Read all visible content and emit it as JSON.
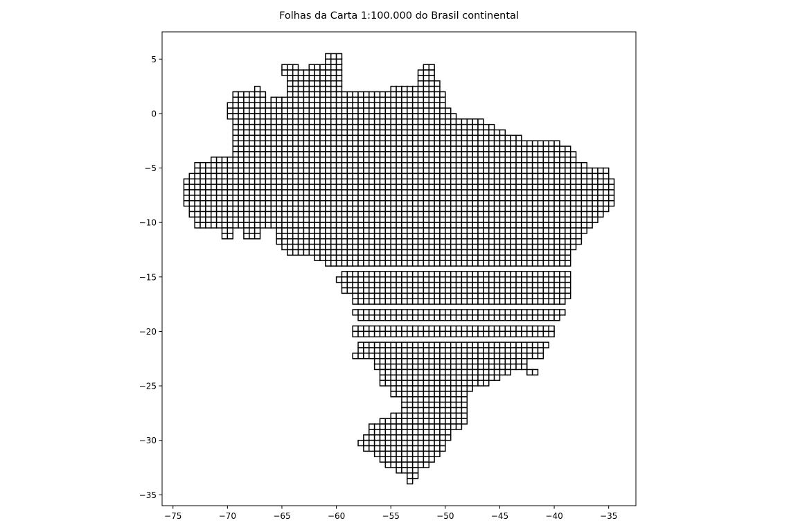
{
  "chart_data": {
    "type": "map",
    "title": "Folhas da Carta 1:100.000 do Brasil continental",
    "xlabel": "",
    "ylabel": "",
    "xlim": [
      -76.0,
      -32.5
    ],
    "ylim": [
      -36.0,
      7.5
    ],
    "xticks": [
      -75,
      -70,
      -65,
      -60,
      -55,
      -50,
      -45,
      -40,
      -35
    ],
    "yticks": [
      5,
      0,
      -5,
      -10,
      -15,
      -20,
      -25,
      -30,
      -35
    ],
    "xtick_labels": [
      "−75",
      "−70",
      "−65",
      "−60",
      "−55",
      "−50",
      "−45",
      "−40",
      "−35"
    ],
    "ytick_labels": [
      "5",
      "0",
      "−5",
      "−10",
      "−15",
      "−20",
      "−25",
      "−30",
      "−35"
    ],
    "grid": false,
    "sheet_size_deg": [
      0.5,
      0.5
    ],
    "sheet_edge_color": "#000000",
    "sheet_fill_color": "#ffffff",
    "sheet_rows": [
      {
        "lat_top": 5.5,
        "ranges": [
          [
            -61.0,
            -59.5
          ]
        ]
      },
      {
        "lat_top": 5.0,
        "ranges": [
          [
            -61.0,
            -59.5
          ]
        ]
      },
      {
        "lat_top": 4.5,
        "ranges": [
          [
            -65.0,
            -63.5
          ],
          [
            -62.5,
            -59.5
          ],
          [
            -52.0,
            -51.0
          ]
        ]
      },
      {
        "lat_top": 4.0,
        "ranges": [
          [
            -65.0,
            -59.5
          ],
          [
            -52.5,
            -51.0
          ]
        ]
      },
      {
        "lat_top": 3.5,
        "ranges": [
          [
            -64.5,
            -59.5
          ],
          [
            -52.5,
            -51.0
          ]
        ]
      },
      {
        "lat_top": 3.0,
        "ranges": [
          [
            -64.5,
            -59.5
          ],
          [
            -52.5,
            -50.5
          ]
        ]
      },
      {
        "lat_top": 2.5,
        "ranges": [
          [
            -67.5,
            -67.0
          ],
          [
            -64.5,
            -59.5
          ],
          [
            -55.0,
            -50.5
          ]
        ]
      },
      {
        "lat_top": 2.0,
        "ranges": [
          [
            -69.5,
            -66.5
          ],
          [
            -64.5,
            -50.0
          ]
        ]
      },
      {
        "lat_top": 1.5,
        "ranges": [
          [
            -69.5,
            -66.5
          ],
          [
            -66.0,
            -50.0
          ]
        ]
      },
      {
        "lat_top": 1.0,
        "ranges": [
          [
            -70.0,
            -50.0
          ]
        ]
      },
      {
        "lat_top": 0.5,
        "ranges": [
          [
            -70.0,
            -49.5
          ]
        ]
      },
      {
        "lat_top": 0.0,
        "ranges": [
          [
            -70.0,
            -49.0
          ]
        ]
      },
      {
        "lat_top": -0.5,
        "ranges": [
          [
            -69.5,
            -46.5
          ]
        ]
      },
      {
        "lat_top": -1.0,
        "ranges": [
          [
            -69.5,
            -45.5
          ]
        ]
      },
      {
        "lat_top": -1.5,
        "ranges": [
          [
            -69.5,
            -44.5
          ]
        ]
      },
      {
        "lat_top": -2.0,
        "ranges": [
          [
            -69.5,
            -43.0
          ]
        ]
      },
      {
        "lat_top": -2.5,
        "ranges": [
          [
            -69.5,
            -39.5
          ]
        ]
      },
      {
        "lat_top": -3.0,
        "ranges": [
          [
            -69.5,
            -38.5
          ]
        ]
      },
      {
        "lat_top": -3.5,
        "ranges": [
          [
            -69.5,
            -38.0
          ]
        ]
      },
      {
        "lat_top": -4.0,
        "ranges": [
          [
            -71.5,
            -38.0
          ]
        ]
      },
      {
        "lat_top": -4.5,
        "ranges": [
          [
            -73.0,
            -37.0
          ]
        ]
      },
      {
        "lat_top": -5.0,
        "ranges": [
          [
            -73.0,
            -35.0
          ]
        ]
      },
      {
        "lat_top": -5.5,
        "ranges": [
          [
            -73.5,
            -35.0
          ]
        ]
      },
      {
        "lat_top": -6.0,
        "ranges": [
          [
            -74.0,
            -34.5
          ]
        ]
      },
      {
        "lat_top": -6.5,
        "ranges": [
          [
            -74.0,
            -34.5
          ]
        ]
      },
      {
        "lat_top": -7.0,
        "ranges": [
          [
            -74.0,
            -34.5
          ]
        ]
      },
      {
        "lat_top": -7.5,
        "ranges": [
          [
            -74.0,
            -34.5
          ]
        ]
      },
      {
        "lat_top": -8.0,
        "ranges": [
          [
            -74.0,
            -34.5
          ]
        ]
      },
      {
        "lat_top": -8.5,
        "ranges": [
          [
            -73.5,
            -35.0
          ]
        ]
      },
      {
        "lat_top": -9.0,
        "ranges": [
          [
            -73.5,
            -35.5
          ]
        ]
      },
      {
        "lat_top": -9.5,
        "ranges": [
          [
            -73.0,
            -36.0
          ]
        ]
      },
      {
        "lat_top": -10.0,
        "ranges": [
          [
            -73.0,
            -36.5
          ]
        ]
      },
      {
        "lat_top": -10.5,
        "ranges": [
          [
            -70.5,
            -69.5
          ],
          [
            -68.5,
            -67.0
          ],
          [
            -65.5,
            -37.0
          ]
        ]
      },
      {
        "lat_top": -11.0,
        "ranges": [
          [
            -70.5,
            -69.5
          ],
          [
            -68.5,
            -67.0
          ],
          [
            -65.5,
            -37.5
          ]
        ]
      },
      {
        "lat_top": -11.5,
        "ranges": [
          [
            -65.5,
            -37.5
          ]
        ]
      },
      {
        "lat_top": -12.0,
        "ranges": [
          [
            -65.0,
            -38.0
          ]
        ]
      },
      {
        "lat_top": -12.5,
        "ranges": [
          [
            -64.5,
            -38.5
          ]
        ]
      },
      {
        "lat_top": -13.0,
        "ranges": [
          [
            -62.0,
            -38.5
          ]
        ]
      },
      {
        "lat_top": -13.5,
        "ranges": [
          [
            -61.0,
            -38.5
          ]
        ]
      },
      {
        "lat_top": -14.5,
        "ranges": [
          [
            -59.5,
            -38.5
          ]
        ]
      },
      {
        "lat_top": -15.0,
        "ranges": [
          [
            -60.0,
            -38.5
          ]
        ]
      },
      {
        "lat_top": -15.5,
        "ranges": [
          [
            -59.5,
            -38.5
          ]
        ]
      },
      {
        "lat_top": -16.0,
        "ranges": [
          [
            -59.5,
            -38.5
          ]
        ]
      },
      {
        "lat_top": -16.5,
        "ranges": [
          [
            -58.5,
            -38.5
          ]
        ]
      },
      {
        "lat_top": -17.0,
        "ranges": [
          [
            -58.5,
            -39.0
          ]
        ]
      },
      {
        "lat_top": -18.0,
        "ranges": [
          [
            -58.5,
            -39.0
          ]
        ]
      },
      {
        "lat_top": -18.5,
        "ranges": [
          [
            -58.0,
            -39.5
          ]
        ]
      },
      {
        "lat_top": -19.5,
        "ranges": [
          [
            -58.5,
            -40.0
          ]
        ]
      },
      {
        "lat_top": -20.0,
        "ranges": [
          [
            -58.5,
            -40.0
          ]
        ]
      },
      {
        "lat_top": -21.0,
        "ranges": [
          [
            -58.0,
            -40.5
          ]
        ]
      },
      {
        "lat_top": -21.5,
        "ranges": [
          [
            -58.0,
            -41.0
          ]
        ]
      },
      {
        "lat_top": -22.0,
        "ranges": [
          [
            -58.5,
            -41.0
          ]
        ]
      },
      {
        "lat_top": -22.5,
        "ranges": [
          [
            -56.5,
            -42.5
          ]
        ]
      },
      {
        "lat_top": -23.0,
        "ranges": [
          [
            -56.5,
            -42.5
          ]
        ]
      },
      {
        "lat_top": -23.5,
        "ranges": [
          [
            -56.0,
            -44.0
          ],
          [
            -42.5,
            -41.5
          ]
        ]
      },
      {
        "lat_top": -24.0,
        "ranges": [
          [
            -56.0,
            -45.0
          ]
        ]
      },
      {
        "lat_top": -24.5,
        "ranges": [
          [
            -56.0,
            -46.0
          ]
        ]
      },
      {
        "lat_top": -25.0,
        "ranges": [
          [
            -55.0,
            -47.5
          ]
        ]
      },
      {
        "lat_top": -25.5,
        "ranges": [
          [
            -55.0,
            -48.0
          ]
        ]
      },
      {
        "lat_top": -26.0,
        "ranges": [
          [
            -54.0,
            -48.0
          ]
        ]
      },
      {
        "lat_top": -26.5,
        "ranges": [
          [
            -54.0,
            -48.0
          ]
        ]
      },
      {
        "lat_top": -27.0,
        "ranges": [
          [
            -54.0,
            -48.0
          ]
        ]
      },
      {
        "lat_top": -27.5,
        "ranges": [
          [
            -55.0,
            -48.0
          ]
        ]
      },
      {
        "lat_top": -28.0,
        "ranges": [
          [
            -56.0,
            -48.0
          ]
        ]
      },
      {
        "lat_top": -28.5,
        "ranges": [
          [
            -57.0,
            -48.5
          ]
        ]
      },
      {
        "lat_top": -29.0,
        "ranges": [
          [
            -57.0,
            -49.5
          ]
        ]
      },
      {
        "lat_top": -29.5,
        "ranges": [
          [
            -57.5,
            -49.5
          ]
        ]
      },
      {
        "lat_top": -30.0,
        "ranges": [
          [
            -58.0,
            -50.0
          ]
        ]
      },
      {
        "lat_top": -30.5,
        "ranges": [
          [
            -57.5,
            -50.0
          ]
        ]
      },
      {
        "lat_top": -31.0,
        "ranges": [
          [
            -56.5,
            -50.5
          ]
        ]
      },
      {
        "lat_top": -31.5,
        "ranges": [
          [
            -56.0,
            -51.0
          ]
        ]
      },
      {
        "lat_top": -32.0,
        "ranges": [
          [
            -55.5,
            -51.5
          ]
        ]
      },
      {
        "lat_top": -32.5,
        "ranges": [
          [
            -54.5,
            -52.5
          ]
        ]
      },
      {
        "lat_top": -33.0,
        "ranges": [
          [
            -53.5,
            -52.5
          ]
        ]
      },
      {
        "lat_top": -33.5,
        "ranges": [
          [
            -53.5,
            -53.0
          ]
        ]
      }
    ]
  }
}
